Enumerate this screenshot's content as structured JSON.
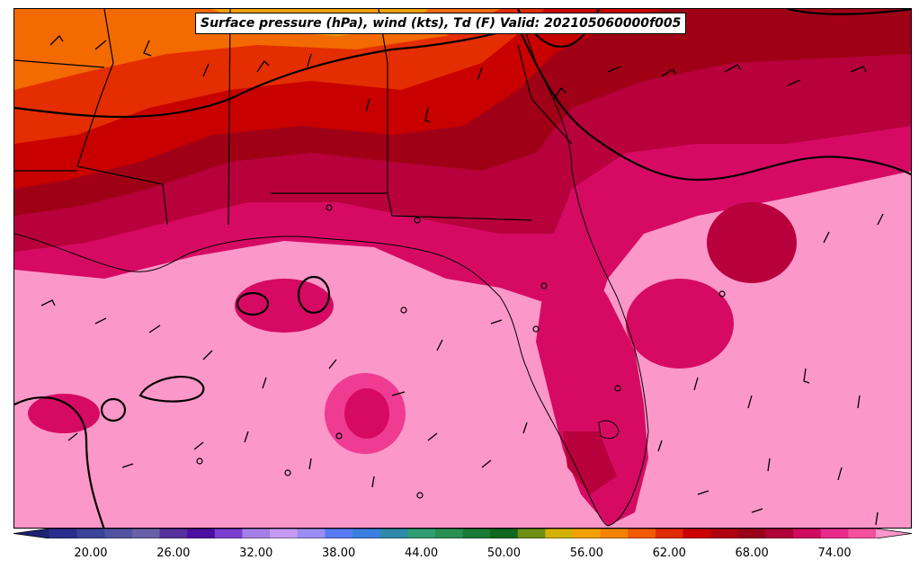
{
  "title": "Surface pressure (hPa), wind (kts), Td (F) Valid: 202105060000f005",
  "colorbar": {
    "min": 17,
    "max": 77,
    "step": 2,
    "tick_labels": [
      "20.00",
      "26.00",
      "32.00",
      "38.00",
      "44.00",
      "50.00",
      "56.00",
      "62.00",
      "68.00",
      "74.00"
    ],
    "tick_values": [
      20,
      26,
      32,
      38,
      44,
      50,
      56,
      62,
      68,
      74
    ],
    "colors": [
      "#2b2f8c",
      "#3b4496",
      "#5152a0",
      "#6860a8",
      "#56309e",
      "#4c0fa4",
      "#7b3fd0",
      "#a67fe6",
      "#c59bf5",
      "#9c8cf5",
      "#5a7af5",
      "#3a7ee0",
      "#2e8aa8",
      "#2f9d74",
      "#2a8f52",
      "#1b7a36",
      "#0f6a1e",
      "#6f8f12",
      "#d4b000",
      "#f3a100",
      "#f48200",
      "#f35b00",
      "#e22a00",
      "#cc0000",
      "#b00010",
      "#9a0018",
      "#b0003a",
      "#d00c60",
      "#ea2a8a",
      "#f5509e"
    ],
    "over_color": "#fc97c9",
    "under_color": "#1e2270"
  },
  "map_colors": {
    "orange": "#f36a00",
    "red_orange": "#e42d00",
    "red": "#c80000",
    "dark_red": "#9f0016",
    "crimson": "#b8003c",
    "magenta": "#d60a63",
    "pink": "#ef3c92",
    "light_pink": "#fc97c9",
    "yellow": "#f3a100"
  }
}
